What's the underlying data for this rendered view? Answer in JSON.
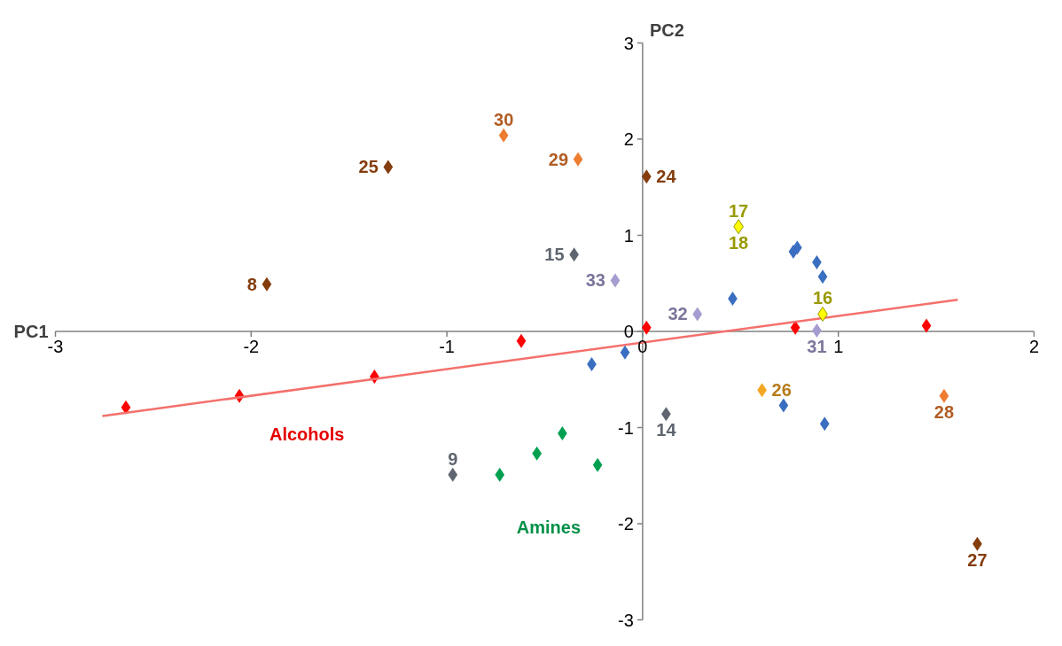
{
  "chart_data": {
    "type": "scatter",
    "xlabel": "PC1",
    "ylabel": "PC2",
    "xlim": [
      -3,
      2
    ],
    "ylim": [
      -3,
      3
    ],
    "xticks": [
      -3,
      -2,
      -1,
      0,
      1,
      2
    ],
    "yticks": [
      -3,
      -2,
      -1,
      0,
      1,
      2,
      3
    ],
    "grid": false,
    "marker": "diamond",
    "series": [
      {
        "name": "Alcohols",
        "color": "#ff0000",
        "x": [
          -2.64,
          -2.06,
          -1.37,
          -0.62,
          0.02,
          0.78,
          1.45
        ],
        "values": [
          -0.79,
          -0.67,
          -0.47,
          -0.1,
          0.04,
          0.04,
          0.06
        ]
      },
      {
        "type": "line",
        "marker": "none",
        "color": "#f4706c",
        "x": [
          -2.76,
          1.61
        ],
        "values": [
          -0.88,
          0.33
        ]
      },
      {
        "name": "Amines",
        "color": "#00a050",
        "x": [
          -0.73,
          -0.54,
          -0.41,
          -0.23
        ],
        "values": [
          -1.49,
          -1.27,
          -1.06,
          -1.39
        ]
      },
      {
        "color": "#3a6ec0",
        "x": [
          -0.26,
          -0.09,
          0.46,
          0.77,
          0.79,
          0.89,
          0.92,
          0.72,
          0.93
        ],
        "values": [
          -0.34,
          -0.22,
          0.34,
          0.83,
          0.87,
          0.72,
          0.57,
          -0.77,
          -0.96
        ]
      },
      {
        "color": "#843c0c",
        "x": [
          -1.92,
          -1.3,
          0.02,
          1.71
        ],
        "values": [
          0.49,
          1.71,
          1.61,
          -2.21
        ]
      },
      {
        "color": "#ed7d31",
        "x": [
          -0.71,
          -0.33,
          1.54
        ],
        "values": [
          2.04,
          1.79,
          -0.67
        ]
      },
      {
        "color": "#f5a623",
        "x": [
          0.61
        ],
        "values": [
          -0.61
        ]
      },
      {
        "color": "#ffff00",
        "x": [
          0.49,
          0.92
        ],
        "values": [
          1.09,
          0.18
        ]
      },
      {
        "color": "#a69ccf",
        "x": [
          -0.14,
          0.28,
          0.89
        ],
        "values": [
          0.53,
          0.18,
          0.01
        ]
      },
      {
        "color": "#5f6670",
        "x": [
          -0.35,
          0.12,
          -0.97
        ],
        "values": [
          0.8,
          -0.86,
          -1.49
        ]
      }
    ],
    "annotations": [
      {
        "text": "8",
        "x": -1.92,
        "y": 0.49
      },
      {
        "text": "25",
        "x": -1.3,
        "y": 1.71
      },
      {
        "text": "24",
        "x": 0.02,
        "y": 1.61
      },
      {
        "text": "27",
        "x": 1.71,
        "y": -2.21
      },
      {
        "text": "30",
        "x": -0.71,
        "y": 2.04
      },
      {
        "text": "29",
        "x": -0.33,
        "y": 1.79
      },
      {
        "text": "28",
        "x": 1.54,
        "y": -0.67
      },
      {
        "text": "26",
        "x": 0.61,
        "y": -0.61
      },
      {
        "text": "17",
        "x": 0.49,
        "y": 1.09
      },
      {
        "text": "18",
        "x": 0.49,
        "y": 1.09
      },
      {
        "text": "16",
        "x": 0.92,
        "y": 0.18
      },
      {
        "text": "33",
        "x": -0.14,
        "y": 0.53
      },
      {
        "text": "32",
        "x": 0.28,
        "y": 0.18
      },
      {
        "text": "31",
        "x": 0.89,
        "y": 0.01
      },
      {
        "text": "15",
        "x": -0.35,
        "y": 0.8
      },
      {
        "text": "14",
        "x": 0.12,
        "y": -0.86
      },
      {
        "text": "9",
        "x": -0.97,
        "y": -1.49
      }
    ]
  }
}
